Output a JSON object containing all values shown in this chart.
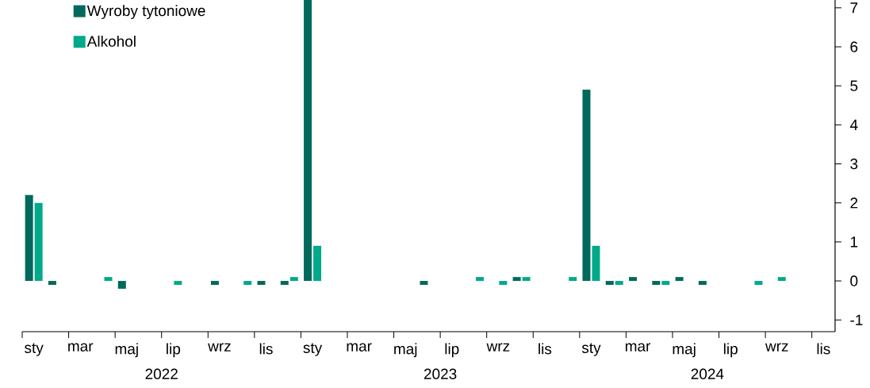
{
  "chart_data": {
    "type": "bar",
    "categories": [
      "sty",
      null,
      "mar",
      null,
      "maj",
      null,
      "lip",
      null,
      "wrz",
      null,
      "lis",
      null,
      "sty",
      null,
      "mar",
      null,
      "maj",
      null,
      "lip",
      null,
      "wrz",
      null,
      "lis",
      null,
      "sty",
      null,
      "mar",
      null,
      "maj",
      null,
      "lip",
      null,
      "wrz",
      null,
      "lis"
    ],
    "series": [
      {
        "name": "Wyroby tytoniowe",
        "color": "#00695c",
        "values": [
          2.2,
          -0.1,
          null,
          null,
          -0.2,
          null,
          null,
          null,
          -0.1,
          null,
          -0.1,
          -0.1,
          7.2,
          null,
          null,
          null,
          null,
          -0.1,
          null,
          null,
          null,
          0.1,
          null,
          null,
          4.9,
          -0.1,
          0.1,
          -0.1,
          0.1,
          -0.1,
          null,
          null,
          null,
          null,
          null
        ]
      },
      {
        "name": "Alkohol",
        "color": "#00a98a",
        "values": [
          2.0,
          null,
          null,
          0.1,
          null,
          null,
          -0.1,
          null,
          null,
          -0.1,
          null,
          0.1,
          0.9,
          null,
          null,
          null,
          null,
          null,
          null,
          0.1,
          -0.1,
          0.1,
          null,
          0.1,
          0.9,
          -0.1,
          null,
          -0.1,
          null,
          null,
          null,
          -0.1,
          0.1,
          null,
          null
        ]
      }
    ],
    "ylim": [
      -1.3,
      7.2
    ],
    "yticks": [
      -1,
      0,
      1,
      2,
      3,
      4,
      5,
      6,
      7
    ],
    "legend": "top left",
    "annotations": [
      "2022",
      "2023",
      "2024"
    ]
  }
}
